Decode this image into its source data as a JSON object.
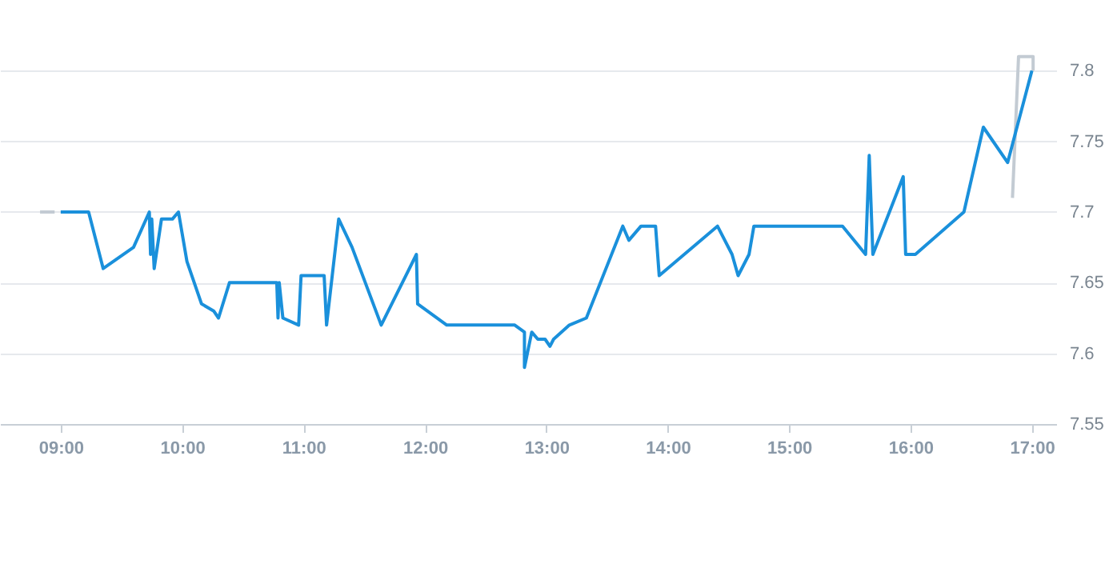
{
  "chart_data": {
    "type": "line",
    "xlim": [
      8.5,
      17.2
    ],
    "ylim": [
      7.55,
      7.85
    ],
    "xticks": [
      {
        "value": 9,
        "label": "09:00"
      },
      {
        "value": 10,
        "label": "10:00"
      },
      {
        "value": 11,
        "label": "11:00"
      },
      {
        "value": 12,
        "label": "12:00"
      },
      {
        "value": 13,
        "label": "13:00"
      },
      {
        "value": 14,
        "label": "14:00"
      },
      {
        "value": 15,
        "label": "15:00"
      },
      {
        "value": 16,
        "label": "16:00"
      },
      {
        "value": 17,
        "label": "17:00"
      }
    ],
    "yticks": [
      7.55,
      7.6,
      7.65,
      7.7,
      7.75,
      7.8
    ],
    "grid": "y",
    "marker": "none",
    "line_style": "solid",
    "series": [
      {
        "color": "#c3cbd3",
        "x": [
          8.83,
          8.95,
          null,
          16.84,
          16.89,
          17.01,
          17.01
        ],
        "values": [
          7.7,
          7.7,
          null,
          7.71,
          7.81,
          7.81,
          7.8
        ]
      },
      {
        "color": "#1a90db",
        "x": [
          9.0,
          9.23,
          9.35,
          9.6,
          9.73,
          9.74,
          9.75,
          9.77,
          9.83,
          9.92,
          9.97,
          10.04,
          10.16,
          10.26,
          10.3,
          10.39,
          10.78,
          10.79,
          10.8,
          10.83,
          10.96,
          10.98,
          11.17,
          11.19,
          11.29,
          11.4,
          11.64,
          11.93,
          11.94,
          12.18,
          12.74,
          12.82,
          12.82,
          12.88,
          12.93,
          12.99,
          13.03,
          13.06,
          13.19,
          13.33,
          13.63,
          13.68,
          13.78,
          13.9,
          13.93,
          14.41,
          14.53,
          14.58,
          14.67,
          14.71,
          15.44,
          15.63,
          15.66,
          15.69,
          15.94,
          15.96,
          16.04,
          16.44,
          16.6,
          16.8,
          17.0
        ],
        "values": [
          7.7,
          7.7,
          7.66,
          7.675,
          7.7,
          7.67,
          7.695,
          7.66,
          7.695,
          7.695,
          7.7,
          7.665,
          7.635,
          7.63,
          7.625,
          7.65,
          7.65,
          7.625,
          7.65,
          7.625,
          7.62,
          7.655,
          7.655,
          7.62,
          7.695,
          7.675,
          7.62,
          7.67,
          7.635,
          7.62,
          7.62,
          7.615,
          7.59,
          7.615,
          7.61,
          7.61,
          7.605,
          7.61,
          7.62,
          7.625,
          7.69,
          7.68,
          7.69,
          7.69,
          7.655,
          7.69,
          7.67,
          7.655,
          7.67,
          7.69,
          7.69,
          7.67,
          7.74,
          7.67,
          7.725,
          7.67,
          7.67,
          7.7,
          7.76,
          7.735,
          7.8
        ]
      }
    ]
  }
}
